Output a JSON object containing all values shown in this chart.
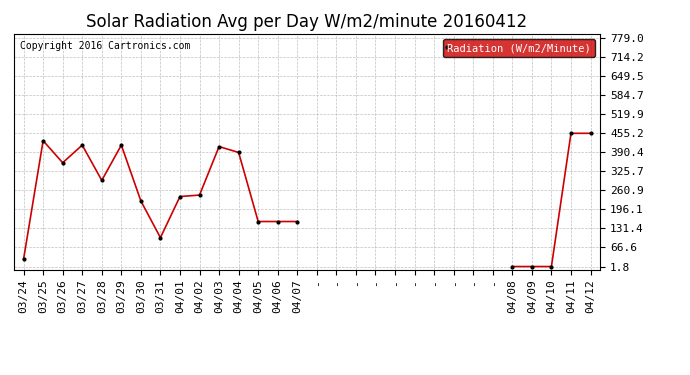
{
  "title": "Solar Radiation Avg per Day W/m2/minute 20160412",
  "copyright": "Copyright 2016 Cartronics.com",
  "legend_label": "Radiation (W/m2/Minute)",
  "x_labels": [
    "03/24",
    "03/25",
    "03/26",
    "03/27",
    "03/28",
    "03/29",
    "03/30",
    "03/31",
    "04/01",
    "04/02",
    "04/03",
    "04/04",
    "04/05",
    "04/06",
    "04/07",
    "",
    "",
    "",
    "",
    "",
    "",
    "",
    "",
    "",
    "",
    "04/08",
    "04/09",
    "04/10",
    "04/11",
    "04/12"
  ],
  "values_by_date": {
    "03/24": 27.0,
    "03/25": 430.0,
    "03/26": 355.0,
    "03/27": 415.0,
    "03/28": 295.0,
    "03/29": 415.0,
    "03/30": 225.0,
    "03/31": 100.0,
    "04/01": 240.0,
    "04/02": 245.0,
    "04/03": 410.0,
    "04/04": 390.0,
    "04/05": 155.0,
    "04/06": 155.0,
    "04/07": 155.0,
    "04/08": 1.8,
    "04/09": 1.8,
    "04/10": 1.8,
    "04/11": 455.2,
    "04/12": 455.2
  },
  "ylim": [
    1.8,
    779.0
  ],
  "yticks": [
    1.8,
    66.6,
    131.4,
    196.1,
    260.9,
    325.7,
    390.4,
    455.2,
    519.9,
    584.7,
    649.5,
    714.2,
    779.0
  ],
  "line_color": "#cc0000",
  "marker_color": "#000000",
  "bg_color": "#ffffff",
  "plot_bg_color": "#ffffff",
  "grid_color": "#b0b0b0",
  "legend_bg": "#cc0000",
  "legend_text_color": "#ffffff",
  "title_fontsize": 12,
  "tick_fontsize": 8,
  "copyright_fontsize": 7,
  "data_dates": [
    "03/24",
    "03/25",
    "03/26",
    "03/27",
    "03/28",
    "03/29",
    "03/30",
    "03/31",
    "04/01",
    "04/02",
    "04/03",
    "04/04",
    "04/05",
    "04/06",
    "04/07",
    "04/08",
    "04/09",
    "04/10",
    "04/11",
    "04/12"
  ],
  "data_values": [
    27.0,
    430.0,
    355.0,
    415.0,
    295.0,
    415.0,
    225.0,
    100.0,
    240.0,
    245.0,
    410.0,
    390.0,
    155.0,
    155.0,
    155.0,
    1.8,
    1.8,
    1.8,
    455.2,
    455.2
  ],
  "gap_x_positions": [
    14,
    15,
    16,
    17,
    18,
    19,
    20,
    21,
    22,
    23,
    24
  ],
  "visible_x_labels": [
    "03/24",
    "03/25",
    "03/26",
    "03/27",
    "03/28",
    "03/29",
    "03/30",
    "03/31",
    "04/01",
    "04/02",
    "04/03",
    "04/04",
    "04/05",
    "04/06",
    "04/07",
    "04/08",
    "04/09",
    "04/10",
    "04/11",
    "04/12"
  ]
}
